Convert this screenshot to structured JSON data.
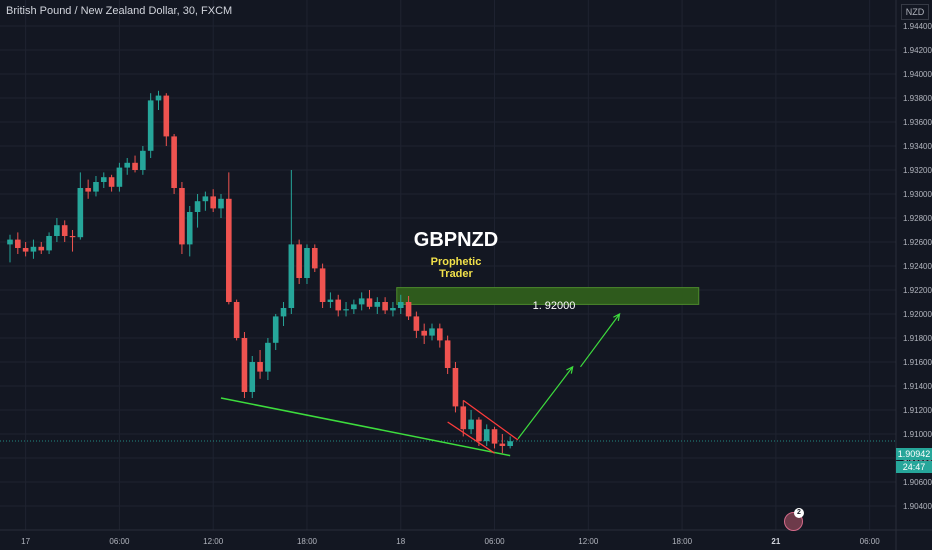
{
  "header": {
    "symbol_title": "British Pound / New Zealand Dollar, 30, FXCM"
  },
  "overlay": {
    "brand_title": "GBPNZD",
    "brand_sub1": "Prophetic",
    "brand_sub2": "Trader",
    "target_label": "1. 92000"
  },
  "price_axis": {
    "currency": "NZD",
    "last_price": "1.90942",
    "countdown": "24:47"
  },
  "alert": {
    "count": "2"
  },
  "colors": {
    "background": "#131722",
    "up": "#26a69a",
    "down": "#ef5350",
    "grid": "#1f2330",
    "trendline": "#3ddc3d",
    "wedge": "#ff3b3b",
    "target_zone": "#2e5a1c",
    "title_accent": "#f0e04a"
  },
  "chart_data": {
    "type": "candlestick",
    "symbol": "GBPNZD",
    "timeframe": "30",
    "y_axis": {
      "ylim": [
        1.9025,
        1.9455
      ],
      "ticks": [
        1.944,
        1.942,
        1.94,
        1.938,
        1.936,
        1.934,
        1.932,
        1.93,
        1.928,
        1.926,
        1.924,
        1.922,
        1.92,
        1.918,
        1.916,
        1.914,
        1.912,
        1.91,
        1.908,
        1.906,
        1.904
      ],
      "tick_labels": [
        "1.94400",
        "1.94200",
        "1.94000",
        "1.93800",
        "1.93600",
        "1.93400",
        "1.93200",
        "1.93000",
        "1.92800",
        "1.92600",
        "1.92400",
        "1.92200",
        "1.92000",
        "1.91800",
        "1.91600",
        "1.91400",
        "1.91200",
        "1.91000",
        "1.90800",
        "1.90600",
        "1.90400"
      ]
    },
    "x_axis": {
      "tick_labels": [
        "17",
        "06:00",
        "12:00",
        "18:00",
        "18",
        "06:00",
        "12:00",
        "18:00",
        "21",
        "06:00"
      ],
      "tick_index": [
        2,
        14,
        26,
        38,
        50,
        62,
        74,
        86,
        98,
        110
      ]
    },
    "candles": [
      {
        "i": 0,
        "o": 1.9258,
        "h": 1.9266,
        "l": 1.9243,
        "c": 1.9262
      },
      {
        "i": 1,
        "o": 1.9262,
        "h": 1.9268,
        "l": 1.925,
        "c": 1.9255
      },
      {
        "i": 2,
        "o": 1.9255,
        "h": 1.926,
        "l": 1.9248,
        "c": 1.9252
      },
      {
        "i": 3,
        "o": 1.9252,
        "h": 1.9262,
        "l": 1.9246,
        "c": 1.9256
      },
      {
        "i": 4,
        "o": 1.9256,
        "h": 1.926,
        "l": 1.925,
        "c": 1.9253
      },
      {
        "i": 5,
        "o": 1.9253,
        "h": 1.9268,
        "l": 1.925,
        "c": 1.9265
      },
      {
        "i": 6,
        "o": 1.9265,
        "h": 1.928,
        "l": 1.926,
        "c": 1.9274
      },
      {
        "i": 7,
        "o": 1.9274,
        "h": 1.9278,
        "l": 1.926,
        "c": 1.9265
      },
      {
        "i": 8,
        "o": 1.9265,
        "h": 1.927,
        "l": 1.9252,
        "c": 1.9264
      },
      {
        "i": 9,
        "o": 1.9264,
        "h": 1.9318,
        "l": 1.9262,
        "c": 1.9305
      },
      {
        "i": 10,
        "o": 1.9305,
        "h": 1.9312,
        "l": 1.9296,
        "c": 1.9302
      },
      {
        "i": 11,
        "o": 1.9302,
        "h": 1.9315,
        "l": 1.9298,
        "c": 1.931
      },
      {
        "i": 12,
        "o": 1.931,
        "h": 1.9318,
        "l": 1.9305,
        "c": 1.9314
      },
      {
        "i": 13,
        "o": 1.9314,
        "h": 1.9316,
        "l": 1.9302,
        "c": 1.9306
      },
      {
        "i": 14,
        "o": 1.9306,
        "h": 1.9326,
        "l": 1.9302,
        "c": 1.9322
      },
      {
        "i": 15,
        "o": 1.9322,
        "h": 1.933,
        "l": 1.9316,
        "c": 1.9326
      },
      {
        "i": 16,
        "o": 1.9326,
        "h": 1.9332,
        "l": 1.9318,
        "c": 1.932
      },
      {
        "i": 17,
        "o": 1.932,
        "h": 1.934,
        "l": 1.9316,
        "c": 1.9336
      },
      {
        "i": 18,
        "o": 1.9336,
        "h": 1.9384,
        "l": 1.933,
        "c": 1.9378
      },
      {
        "i": 19,
        "o": 1.9378,
        "h": 1.9386,
        "l": 1.937,
        "c": 1.9382
      },
      {
        "i": 20,
        "o": 1.9382,
        "h": 1.9384,
        "l": 1.934,
        "c": 1.9348
      },
      {
        "i": 21,
        "o": 1.9348,
        "h": 1.935,
        "l": 1.93,
        "c": 1.9305
      },
      {
        "i": 22,
        "o": 1.9305,
        "h": 1.931,
        "l": 1.925,
        "c": 1.9258
      },
      {
        "i": 23,
        "o": 1.9258,
        "h": 1.929,
        "l": 1.9248,
        "c": 1.9285
      },
      {
        "i": 24,
        "o": 1.9285,
        "h": 1.93,
        "l": 1.9272,
        "c": 1.9294
      },
      {
        "i": 25,
        "o": 1.9294,
        "h": 1.9302,
        "l": 1.9286,
        "c": 1.9298
      },
      {
        "i": 26,
        "o": 1.9298,
        "h": 1.9304,
        "l": 1.9285,
        "c": 1.9288
      },
      {
        "i": 27,
        "o": 1.9288,
        "h": 1.93,
        "l": 1.928,
        "c": 1.9296
      },
      {
        "i": 28,
        "o": 1.9296,
        "h": 1.9318,
        "l": 1.9208,
        "c": 1.921
      },
      {
        "i": 29,
        "o": 1.921,
        "h": 1.9212,
        "l": 1.9178,
        "c": 1.918
      },
      {
        "i": 30,
        "o": 1.918,
        "h": 1.9185,
        "l": 1.913,
        "c": 1.9135
      },
      {
        "i": 31,
        "o": 1.9135,
        "h": 1.9165,
        "l": 1.913,
        "c": 1.916
      },
      {
        "i": 32,
        "o": 1.916,
        "h": 1.917,
        "l": 1.9146,
        "c": 1.9152
      },
      {
        "i": 33,
        "o": 1.9152,
        "h": 1.918,
        "l": 1.9145,
        "c": 1.9176
      },
      {
        "i": 34,
        "o": 1.9176,
        "h": 1.92,
        "l": 1.917,
        "c": 1.9198
      },
      {
        "i": 35,
        "o": 1.9198,
        "h": 1.921,
        "l": 1.919,
        "c": 1.9205
      },
      {
        "i": 36,
        "o": 1.9205,
        "h": 1.932,
        "l": 1.92,
        "c": 1.9258
      },
      {
        "i": 37,
        "o": 1.9258,
        "h": 1.9262,
        "l": 1.9225,
        "c": 1.923
      },
      {
        "i": 38,
        "o": 1.923,
        "h": 1.9258,
        "l": 1.9225,
        "c": 1.9255
      },
      {
        "i": 39,
        "o": 1.9255,
        "h": 1.9258,
        "l": 1.9235,
        "c": 1.9238
      },
      {
        "i": 40,
        "o": 1.9238,
        "h": 1.9242,
        "l": 1.9205,
        "c": 1.921
      },
      {
        "i": 41,
        "o": 1.921,
        "h": 1.9218,
        "l": 1.9205,
        "c": 1.9212
      },
      {
        "i": 42,
        "o": 1.9212,
        "h": 1.9216,
        "l": 1.9198,
        "c": 1.9203
      },
      {
        "i": 43,
        "o": 1.9203,
        "h": 1.921,
        "l": 1.9198,
        "c": 1.9204
      },
      {
        "i": 44,
        "o": 1.9204,
        "h": 1.9212,
        "l": 1.92,
        "c": 1.9208
      },
      {
        "i": 45,
        "o": 1.9208,
        "h": 1.9218,
        "l": 1.9203,
        "c": 1.9213
      },
      {
        "i": 46,
        "o": 1.9213,
        "h": 1.922,
        "l": 1.9204,
        "c": 1.9206
      },
      {
        "i": 47,
        "o": 1.9206,
        "h": 1.9214,
        "l": 1.92,
        "c": 1.921
      },
      {
        "i": 48,
        "o": 1.921,
        "h": 1.9214,
        "l": 1.92,
        "c": 1.9203
      },
      {
        "i": 49,
        "o": 1.9203,
        "h": 1.921,
        "l": 1.9198,
        "c": 1.9205
      },
      {
        "i": 50,
        "o": 1.9205,
        "h": 1.9216,
        "l": 1.92,
        "c": 1.921
      },
      {
        "i": 51,
        "o": 1.921,
        "h": 1.9215,
        "l": 1.9195,
        "c": 1.9198
      },
      {
        "i": 52,
        "o": 1.9198,
        "h": 1.9202,
        "l": 1.918,
        "c": 1.9186
      },
      {
        "i": 53,
        "o": 1.9186,
        "h": 1.9192,
        "l": 1.9175,
        "c": 1.9182
      },
      {
        "i": 54,
        "o": 1.9182,
        "h": 1.9192,
        "l": 1.9178,
        "c": 1.9188
      },
      {
        "i": 55,
        "o": 1.9188,
        "h": 1.9192,
        "l": 1.9172,
        "c": 1.9178
      },
      {
        "i": 56,
        "o": 1.9178,
        "h": 1.9182,
        "l": 1.915,
        "c": 1.9155
      },
      {
        "i": 57,
        "o": 1.9155,
        "h": 1.916,
        "l": 1.9118,
        "c": 1.9123
      },
      {
        "i": 58,
        "o": 1.9123,
        "h": 1.9128,
        "l": 1.9098,
        "c": 1.9104
      },
      {
        "i": 59,
        "o": 1.9104,
        "h": 1.912,
        "l": 1.91,
        "c": 1.9112
      },
      {
        "i": 60,
        "o": 1.9112,
        "h": 1.9114,
        "l": 1.909,
        "c": 1.9094
      },
      {
        "i": 61,
        "o": 1.9094,
        "h": 1.9108,
        "l": 1.909,
        "c": 1.9104
      },
      {
        "i": 62,
        "o": 1.9104,
        "h": 1.9106,
        "l": 1.9088,
        "c": 1.9092
      },
      {
        "i": 63,
        "o": 1.9092,
        "h": 1.91,
        "l": 1.9084,
        "c": 1.909
      },
      {
        "i": 64,
        "o": 1.909,
        "h": 1.9098,
        "l": 1.9088,
        "c": 1.9094
      }
    ],
    "annotations": {
      "target_zone": {
        "price_low": 1.9208,
        "price_high": 1.9222,
        "index_from": 50,
        "index_to": 86,
        "label": "1. 92000"
      },
      "support_line": {
        "from": {
          "i": 27,
          "price": 1.913
        },
        "to": {
          "i": 64,
          "price": 1.9082
        }
      },
      "wedge_upper": {
        "from": {
          "i": 58,
          "price": 1.9128
        },
        "to": {
          "i": 65,
          "price": 1.9095
        }
      },
      "wedge_lower": {
        "from": {
          "i": 56,
          "price": 1.911
        },
        "to": {
          "i": 62,
          "price": 1.9084
        }
      },
      "forecast_arrow": [
        {
          "i": 65,
          "price": 1.9096
        },
        {
          "i": 72,
          "price": 1.9156
        },
        {
          "i": 73,
          "price": 1.9156
        },
        {
          "i": 78,
          "price": 1.92
        }
      ]
    },
    "last_price": 1.90942
  }
}
